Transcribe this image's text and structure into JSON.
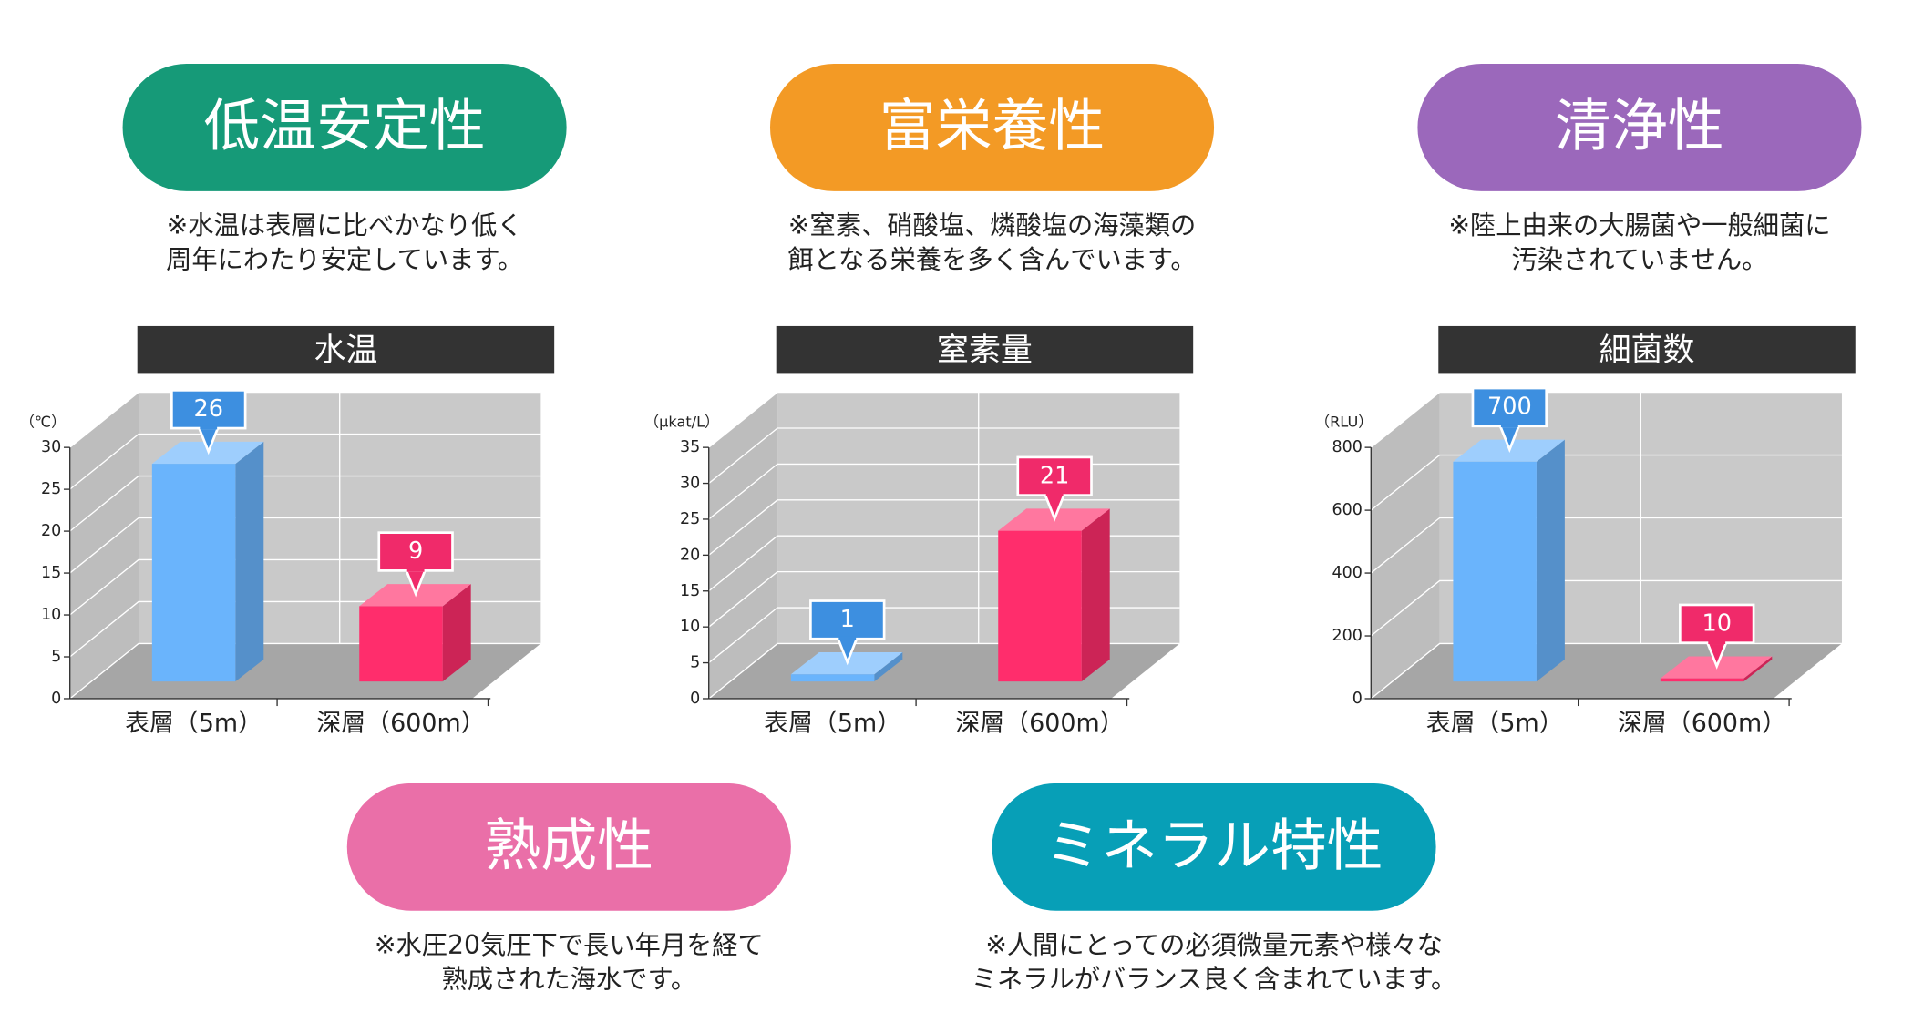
{
  "features": [
    {
      "label": "低温安定性",
      "color": "#169a78",
      "note": [
        "※水温は表層に比べかなり低く",
        "周年にわたり安定しています。"
      ]
    },
    {
      "label": "富栄養性",
      "color": "#f39a25",
      "note": [
        "※窒素、硝酸塩、燐酸塩の海藻類の",
        "餌となる栄養を多く含んでいます。"
      ]
    },
    {
      "label": "清浄性",
      "color": "#9b68bb",
      "note": [
        "※陸上由来の大腸菌や一般細菌に",
        "汚染されていません。"
      ]
    },
    {
      "label": "熟成性",
      "color": "#ea6fa8",
      "note": [
        "※水圧20気圧下で長い年月を経て",
        "熟成された海水です。"
      ]
    },
    {
      "label": "ミネラル特性",
      "color": "#079fb7",
      "note": [
        "※人間にとっての必須微量元素や様々な",
        "ミネラルがバランス良く含まれています。"
      ]
    }
  ],
  "chart_data": [
    {
      "type": "bar",
      "title": "水温",
      "y_label": "（℃）",
      "categories": [
        "表層（5m）",
        "深層（600m）"
      ],
      "values": [
        26,
        9
      ],
      "colors": [
        "#6ab4fc",
        "#ff2d6c"
      ],
      "ylim": [
        0,
        30
      ],
      "yticks": [
        0,
        5,
        10,
        15,
        20,
        25,
        30
      ]
    },
    {
      "type": "bar",
      "title": "窒素量",
      "y_label": "（μkat/L）",
      "categories": [
        "表層（5m）",
        "深層（600m）"
      ],
      "values": [
        1,
        21
      ],
      "colors": [
        "#6ab4fc",
        "#ff2d6c"
      ],
      "ylim": [
        0,
        35
      ],
      "yticks": [
        0,
        5,
        10,
        15,
        20,
        25,
        30,
        35
      ]
    },
    {
      "type": "bar",
      "title": "細菌数",
      "y_label": "（RLU）",
      "categories": [
        "表層（5m）",
        "深層（600m）"
      ],
      "values": [
        700,
        10
      ],
      "colors": [
        "#6ab4fc",
        "#ff2d6c"
      ],
      "ylim": [
        0,
        800
      ],
      "yticks": [
        0,
        200,
        400,
        600,
        800
      ]
    }
  ]
}
